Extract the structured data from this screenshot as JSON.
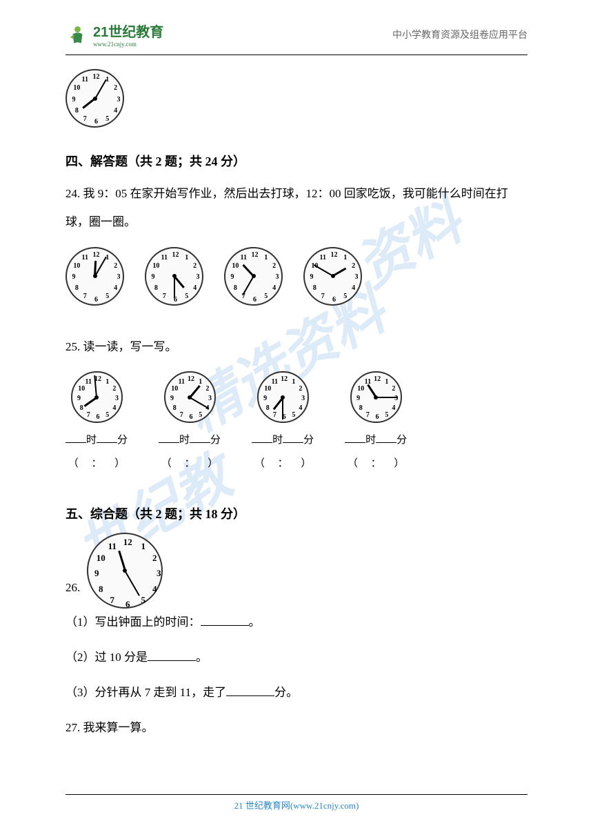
{
  "header": {
    "brand": "21世纪教育",
    "url": "www.21cnjy.com",
    "tagline": "中小学教育资源及组卷应用平台"
  },
  "watermark": {
    "text1": "资料",
    "text2": "精选资料",
    "text3": "世纪教"
  },
  "topClock": {
    "hour_angle": 232,
    "minute_angle": 30
  },
  "section4": {
    "title": "四、解答题（共 2 题；共 24 分）",
    "q24": {
      "text": "24. 我 9：05 在家开始写作业，然后出去打球，12：00 回家吃饭，我可能什么时间在打球，圈一圈。",
      "clocks": [
        {
          "hour_angle": 3,
          "minute_angle": 30
        },
        {
          "hour_angle": 140,
          "minute_angle": 180
        },
        {
          "hour_angle": 317,
          "minute_angle": 210
        },
        {
          "hour_angle": 60,
          "minute_angle": 300
        }
      ]
    },
    "q25": {
      "text": "25. 读一读，写一写。",
      "clocks": [
        {
          "hour_angle": 235,
          "minute_angle": 355
        },
        {
          "hour_angle": 40,
          "minute_angle": 120
        },
        {
          "hour_angle": 218,
          "minute_angle": 180
        },
        {
          "hour_angle": 327,
          "minute_angle": 90
        }
      ],
      "label_hour": "时",
      "label_min": "分",
      "paren_left": "（",
      "paren_colon": "：",
      "paren_right": "）"
    }
  },
  "section5": {
    "title": "五、综合题（共 2 题；共 18 分）",
    "q26": {
      "num": "26.",
      "clock": {
        "hour_angle": 343,
        "minute_angle": 150
      },
      "parts": {
        "p1_before": "（1）写出钟面上的时间：",
        "p1_after": "。",
        "p2_before": "（2）过 10 分是",
        "p2_after": "。",
        "p3_before": "（3）分针再从 7 走到 11，走了",
        "p3_after": "分。"
      }
    },
    "q27": {
      "text": "27. 我来算一算。"
    }
  },
  "footer": {
    "text": "21 世纪教育网(www.21cnjy.com)"
  },
  "clockface": {
    "numbers": [
      "12",
      "1",
      "2",
      "3",
      "4",
      "5",
      "6",
      "7",
      "8",
      "9",
      "10",
      "11"
    ]
  },
  "colors": {
    "brand_green": "#2a7a3a",
    "link_blue": "#2a88c8",
    "watermark": "rgba(100,160,220,0.22)"
  }
}
